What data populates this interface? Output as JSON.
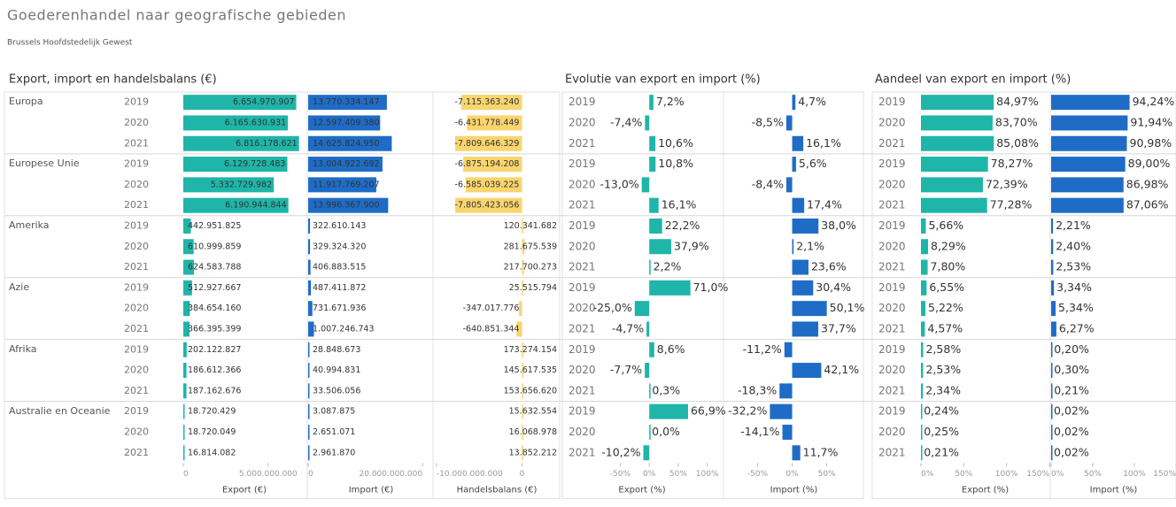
{
  "header": {
    "title": "Goederenhandel naar geografische gebieden",
    "subtitle": "Brussels Hoofdstedelijk Gewest"
  },
  "panels": [
    {
      "title": "Export, import en handelsbalans (€)",
      "columns": [
        {
          "axis_title": "Export (€)",
          "color": "#1fb5a8",
          "xlim": [
            0,
            7200000000
          ],
          "ticks": [
            0,
            {
              "value": 5000000000,
              "label": "5.000.000.000"
            }
          ]
        },
        {
          "axis_title": "Import (€)",
          "color": "#1f6cc7",
          "xlim": [
            0,
            22000000000
          ],
          "ticks": [
            0,
            {
              "value": 20000000000,
              "label": "20.000.000.000"
            }
          ]
        },
        {
          "axis_title": "Handelsbalans (€)",
          "color": "#f9d56e",
          "xlim": [
            -10300000000,
            4400000000
          ],
          "ticks": [
            {
              "value": -10000000000,
              "label": "-10.000.000.000"
            },
            0
          ]
        }
      ]
    },
    {
      "title": "Evolutie van export en import (%)",
      "columns": [
        {
          "axis_title": "Export (%)",
          "color": "#1fb5a8",
          "xlim": [
            -150,
            125
          ],
          "ticks": [
            {
              "value": -50,
              "label": "-50%"
            },
            {
              "value": 0,
              "label": "0%"
            },
            {
              "value": 50,
              "label": "50%"
            },
            {
              "value": 100,
              "label": "100%"
            }
          ]
        },
        {
          "axis_title": "Import (%)",
          "color": "#1f6cc7",
          "xlim": [
            -98,
            103
          ],
          "ticks": [
            {
              "value": -50,
              "label": "-50%"
            },
            {
              "value": 0,
              "label": "0%"
            },
            {
              "value": 50,
              "label": "50%"
            }
          ]
        }
      ]
    },
    {
      "title": "Aandeel van export en import (%)",
      "columns": [
        {
          "axis_title": "Export (%)",
          "color": "#1fb5a8",
          "xlim": [
            0,
            150
          ],
          "ticks": [
            {
              "value": 0,
              "label": "0%"
            },
            {
              "value": 50,
              "label": "50%"
            },
            {
              "value": 100,
              "label": "100%"
            },
            {
              "value": 150,
              "label": "150%"
            }
          ]
        },
        {
          "axis_title": "Import (%)",
          "color": "#1f6cc7",
          "xlim": [
            0,
            150
          ],
          "ticks": [
            {
              "value": 0,
              "label": "0%"
            },
            {
              "value": 50,
              "label": "50%"
            },
            {
              "value": 100,
              "label": "100%"
            },
            {
              "value": 150,
              "label": "150%"
            }
          ]
        }
      ]
    }
  ],
  "regions": [
    {
      "name": "Europa",
      "rows": [
        {
          "year": "2019",
          "values": [
            6654970907,
            13770334147,
            -7115363240,
            7.2,
            4.7,
            84.97,
            94.24
          ],
          "labels": [
            "6.654.970.907",
            "13.770.334.147",
            "-7.115.363.240",
            "7,2%",
            "4,7%",
            "84,97%",
            "94,24%"
          ]
        },
        {
          "year": "2020",
          "values": [
            6165630931,
            12597409380,
            -6431778449,
            -7.4,
            -8.5,
            83.7,
            91.94
          ],
          "labels": [
            "6.165.630.931",
            "12.597.409.380",
            "-6.431.778.449",
            "-7,4%",
            "-8,5%",
            "83,70%",
            "91,94%"
          ]
        },
        {
          "year": "2021",
          "values": [
            6816178621,
            14625824950,
            -7809646329,
            10.6,
            16.1,
            85.08,
            90.98
          ],
          "labels": [
            "6.816.178.621",
            "14.625.824.950",
            "-7.809.646.329",
            "10,6%",
            "16,1%",
            "85,08%",
            "90,98%"
          ]
        }
      ]
    },
    {
      "name": "Europese Unie",
      "rows": [
        {
          "year": "2019",
          "values": [
            6129728483,
            13004922692,
            -6875194208,
            10.8,
            5.6,
            78.27,
            89.0
          ],
          "labels": [
            "6.129.728.483",
            "13.004.922.692",
            "-6.875.194.208",
            "10,8%",
            "5,6%",
            "78,27%",
            "89,00%"
          ]
        },
        {
          "year": "2020",
          "values": [
            5332729982,
            11917769207,
            -6585039225,
            -13.0,
            -8.4,
            72.39,
            86.98
          ],
          "labels": [
            "5.332.729.982",
            "11.917.769.207",
            "-6.585.039.225",
            "-13,0%",
            "-8,4%",
            "72,39%",
            "86,98%"
          ]
        },
        {
          "year": "2021",
          "values": [
            6190944844,
            13996367900,
            -7805423056,
            16.1,
            17.4,
            77.28,
            87.06
          ],
          "labels": [
            "6.190.944.844",
            "13.996.367.900",
            "-7.805.423.056",
            "16,1%",
            "17,4%",
            "77,28%",
            "87,06%"
          ]
        }
      ]
    },
    {
      "name": "Amerika",
      "rows": [
        {
          "year": "2019",
          "values": [
            442951825,
            322610143,
            120341682,
            22.2,
            38.0,
            5.66,
            2.21
          ],
          "labels": [
            "442.951.825",
            "322.610.143",
            "120.341.682",
            "22,2%",
            "38,0%",
            "5,66%",
            "2,21%"
          ]
        },
        {
          "year": "2020",
          "values": [
            610999859,
            329324320,
            281675539,
            37.9,
            2.1,
            8.29,
            2.4
          ],
          "labels": [
            "610.999.859",
            "329.324.320",
            "281.675.539",
            "37,9%",
            "2,1%",
            "8,29%",
            "2,40%"
          ]
        },
        {
          "year": "2021",
          "values": [
            624583788,
            406883515,
            217700273,
            2.2,
            23.6,
            7.8,
            2.53
          ],
          "labels": [
            "624.583.788",
            "406.883.515",
            "217.700.273",
            "2,2%",
            "23,6%",
            "7,80%",
            "2,53%"
          ]
        }
      ]
    },
    {
      "name": "Azie",
      "rows": [
        {
          "year": "2019",
          "values": [
            512927667,
            487411872,
            25515794,
            71.0,
            30.4,
            6.55,
            3.34
          ],
          "labels": [
            "512.927.667",
            "487.411.872",
            "25.515.794",
            "71,0%",
            "30,4%",
            "6,55%",
            "3,34%"
          ]
        },
        {
          "year": "2020",
          "values": [
            384654160,
            731671936,
            -347017776,
            -25.0,
            50.1,
            5.22,
            5.34
          ],
          "labels": [
            "384.654.160",
            "731.671.936",
            "-347.017.776",
            "-25,0%",
            "50,1%",
            "5,22%",
            "5,34%"
          ]
        },
        {
          "year": "2021",
          "values": [
            366395399,
            1007246743,
            -640851344,
            -4.7,
            37.7,
            4.57,
            6.27
          ],
          "labels": [
            "366.395.399",
            "1.007.246.743",
            "-640.851.344",
            "-4,7%",
            "37,7%",
            "4,57%",
            "6,27%"
          ]
        }
      ]
    },
    {
      "name": "Afrika",
      "rows": [
        {
          "year": "2019",
          "values": [
            202122827,
            28848673,
            173274154,
            8.6,
            -11.2,
            2.58,
            0.2
          ],
          "labels": [
            "202.122.827",
            "28.848.673",
            "173.274.154",
            "8,6%",
            "-11,2%",
            "2,58%",
            "0,20%"
          ]
        },
        {
          "year": "2020",
          "values": [
            186612366,
            40994831,
            145617535,
            -7.7,
            42.1,
            2.53,
            0.3
          ],
          "labels": [
            "186.612.366",
            "40.994.831",
            "145.617.535",
            "-7,7%",
            "42,1%",
            "2,53%",
            "0,30%"
          ]
        },
        {
          "year": "2021",
          "values": [
            187162676,
            33506056,
            153656620,
            0.3,
            -18.3,
            2.34,
            0.21
          ],
          "labels": [
            "187.162.676",
            "33.506.056",
            "153.656.620",
            "0,3%",
            "-18,3%",
            "2,34%",
            "0,21%"
          ]
        }
      ]
    },
    {
      "name": "Australie en Oceanie",
      "rows": [
        {
          "year": "2019",
          "values": [
            18720429,
            3087875,
            15632554,
            66.9,
            -32.2,
            0.24,
            0.02
          ],
          "labels": [
            "18.720.429",
            "3.087.875",
            "15.632.554",
            "66,9%",
            "-32,2%",
            "0,24%",
            "0,02%"
          ]
        },
        {
          "year": "2020",
          "values": [
            18720049,
            2651071,
            16068978,
            0.0,
            -14.1,
            0.25,
            0.02
          ],
          "labels": [
            "18.720.049",
            "2.651.071",
            "16.068.978",
            "0,0%",
            "-14,1%",
            "0,25%",
            "0,02%"
          ]
        },
        {
          "year": "2021",
          "values": [
            16814082,
            2961870,
            13852212,
            -10.2,
            11.7,
            0.21,
            0.02
          ],
          "labels": [
            "16.814.082",
            "2.961.870",
            "13.852.212",
            "-10,2%",
            "11,7%",
            "0,21%",
            "0,02%"
          ]
        }
      ]
    }
  ]
}
